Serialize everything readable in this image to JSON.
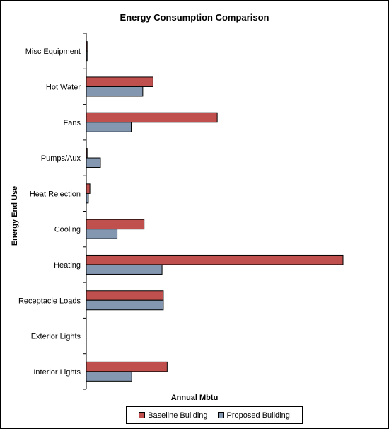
{
  "chart_data": {
    "type": "bar",
    "orientation": "horizontal",
    "title": "Energy Consumption Comparison",
    "xlabel": "Annual Mbtu",
    "ylabel": "Energy End Use",
    "categories": [
      "Misc Equipment",
      "Hot Water",
      "Fans",
      "Pumps/Aux",
      "Heat Rejection",
      "Cooling",
      "Heating",
      "Receptacle Loads",
      "Exterior Lights",
      "Interior Lights"
    ],
    "series": [
      {
        "name": "Baseline Building",
        "color": "#c0504d",
        "values": [
          0.2,
          26,
          51,
          0.3,
          1.4,
          22.5,
          100,
          30,
          0,
          31.5
        ]
      },
      {
        "name": "Proposed Building",
        "color": "#8497b0",
        "values": [
          0.2,
          22,
          17.5,
          5.5,
          0.8,
          12,
          29.5,
          30,
          0,
          17.7
        ]
      }
    ],
    "xlim": [
      0,
      117
    ],
    "grid": false,
    "legend_position": "bottom"
  }
}
